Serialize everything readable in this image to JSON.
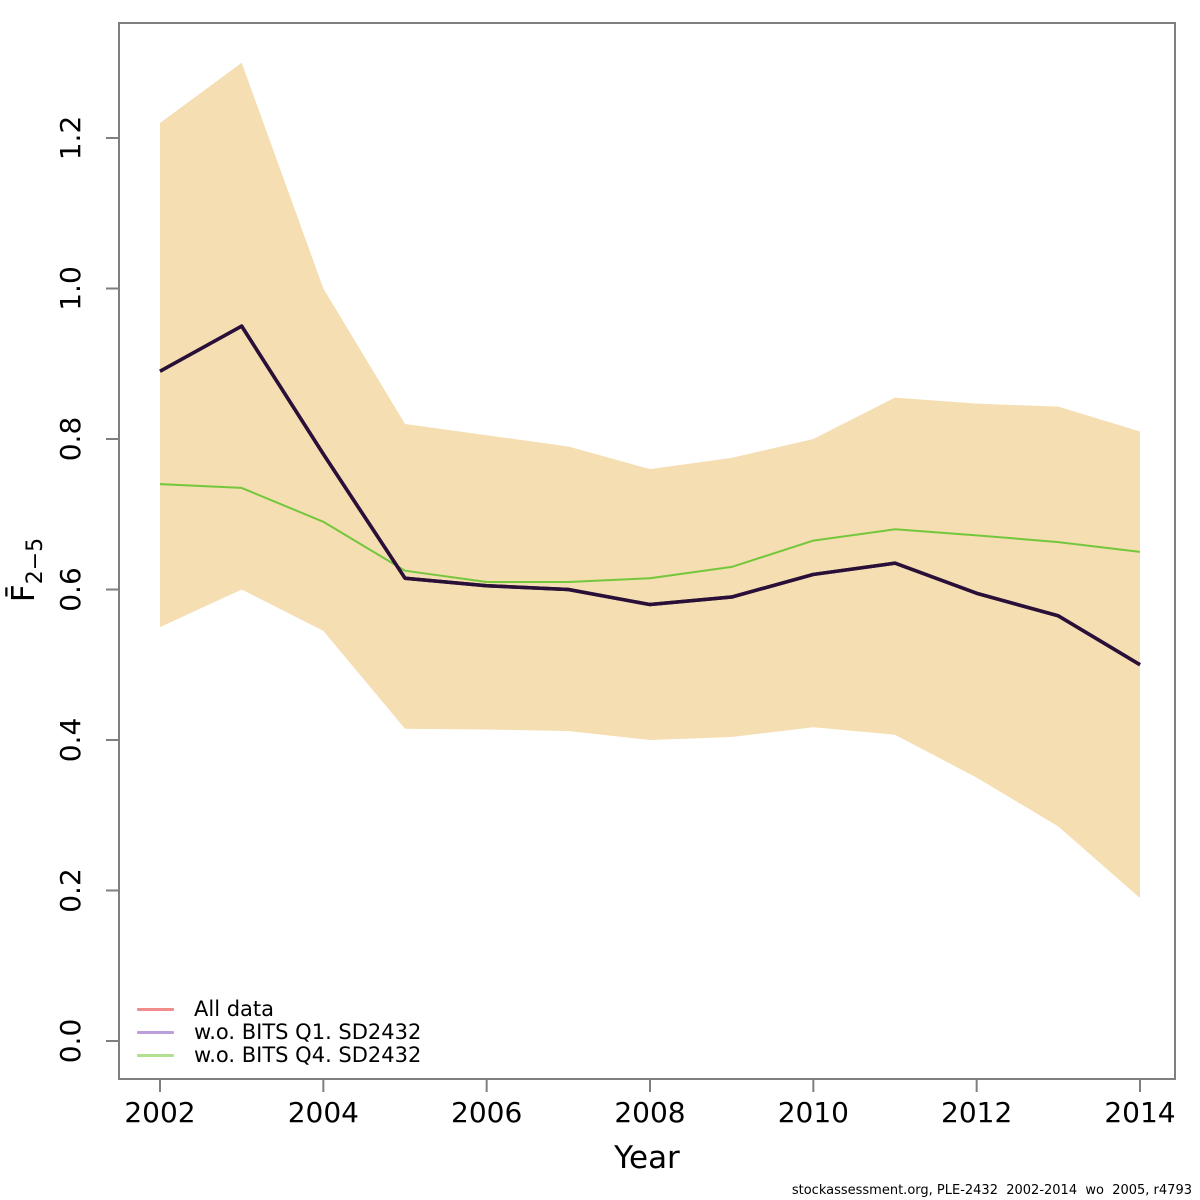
{
  "axes": {
    "xlabel": "Year",
    "ylabel_main": "F̄",
    "ylabel_sub": "2−5"
  },
  "chart_data": {
    "type": "line",
    "title": "",
    "xlabel": "Year",
    "ylabel": "Fbar(2-5)",
    "x": [
      2002,
      2003,
      2004,
      2005,
      2006,
      2007,
      2008,
      2009,
      2010,
      2011,
      2012,
      2013,
      2014
    ],
    "xticks": [
      2002,
      2004,
      2006,
      2008,
      2010,
      2012,
      2014
    ],
    "yticks": [
      0.0,
      0.2,
      0.4,
      0.6,
      0.8,
      1.0,
      1.2
    ],
    "xlim": [
      2002,
      2014
    ],
    "ylim": [
      0.0,
      1.35
    ],
    "grid": "off",
    "legend_position": "bottom-left",
    "series": [
      {
        "name": "All data",
        "plot_color": "#2A1038",
        "width": 3.5,
        "values": [
          0.89,
          0.95,
          0.78,
          0.615,
          0.605,
          0.6,
          0.58,
          0.59,
          0.62,
          0.635,
          0.595,
          0.565,
          0.5
        ]
      },
      {
        "name": "w.o. BITS Q1. SD2432",
        "plot_color": "#2A1038",
        "width": 3.5,
        "values": [
          0.89,
          0.95,
          0.78,
          0.615,
          0.605,
          0.6,
          0.58,
          0.59,
          0.62,
          0.635,
          0.595,
          0.565,
          0.5
        ]
      },
      {
        "name": "w.o. BITS Q4. SD2432",
        "plot_color": "#74C73C",
        "width": 2,
        "values": [
          0.74,
          0.735,
          0.69,
          0.625,
          0.61,
          0.61,
          0.615,
          0.63,
          0.665,
          0.68,
          0.672,
          0.663,
          0.65
        ]
      }
    ],
    "band": {
      "name": "all-data-confidence-band",
      "color": "#F4DEB2",
      "upper": [
        1.22,
        1.3,
        1.0,
        0.82,
        0.805,
        0.79,
        0.76,
        0.775,
        0.8,
        0.855,
        0.847,
        0.843,
        0.81
      ],
      "lower": [
        0.55,
        0.6,
        0.545,
        0.415,
        0.414,
        0.412,
        0.4,
        0.404,
        0.417,
        0.407,
        0.35,
        0.285,
        0.19
      ]
    }
  },
  "legend": {
    "items": [
      {
        "label": "All data",
        "color": "#F18C8C"
      },
      {
        "label": "w.o. BITS Q1. SD2432",
        "color": "#BD9EDC"
      },
      {
        "label": "w.o. BITS Q4. SD2432",
        "color": "#B3E08F"
      }
    ]
  },
  "footer": "stockassessment.org, PLE-2432  2002-2014  wo  2005, r4793",
  "colors": {
    "box": "#7F7F7F",
    "tick": "#7F7F7F",
    "background": "#FFFFFF"
  }
}
